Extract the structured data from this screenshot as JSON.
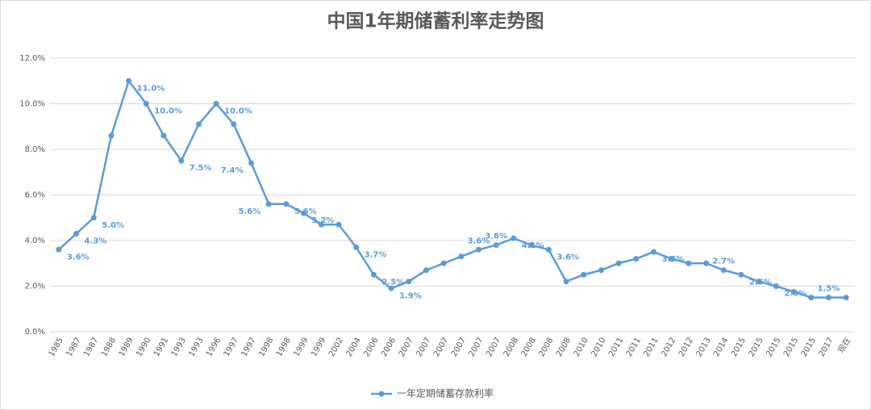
{
  "chart_data": {
    "type": "line",
    "title": "中国1年期储蓄利率走势图",
    "categories": [
      "1985",
      "1987",
      "1987",
      "1988",
      "1989",
      "1990",
      "1991",
      "1993",
      "1993",
      "1996",
      "1997",
      "1997",
      "1998",
      "1998",
      "1999",
      "1999",
      "2002",
      "2004",
      "2006",
      "2006",
      "2007",
      "2007",
      "2007",
      "2007",
      "2007",
      "2007",
      "2008",
      "2008",
      "2008",
      "2008",
      "2010",
      "2010",
      "2011",
      "2011",
      "2011",
      "2012",
      "2012",
      "2013",
      "2014",
      "2015",
      "2015",
      "2015",
      "2015",
      "2015",
      "2017",
      "现在"
    ],
    "series": [
      {
        "name": "一年定期储蓄存款利率",
        "color": "#5b9bd5",
        "values": [
          3.6,
          4.3,
          5.0,
          8.6,
          11.0,
          10.0,
          8.6,
          7.5,
          9.1,
          10.0,
          9.1,
          7.4,
          5.6,
          5.6,
          5.2,
          4.7,
          4.7,
          3.7,
          2.5,
          1.9,
          2.2,
          2.7,
          3.0,
          3.3,
          3.6,
          3.8,
          4.1,
          3.8,
          3.6,
          2.2,
          2.5,
          2.7,
          3.0,
          3.2,
          3.5,
          3.2,
          3.0,
          3.0,
          2.7,
          2.5,
          2.2,
          2.0,
          1.75,
          1.5,
          1.5,
          1.5
        ],
        "value_labels": [
          "3.6%",
          "4.3%",
          "5.0%",
          null,
          "11.0%",
          "10.0%",
          null,
          "7.5%",
          null,
          "10.0%",
          null,
          "7.4%",
          "5.6%",
          "5.6%",
          "5.2%",
          null,
          null,
          "3.7%",
          "2.5%",
          "1.9%",
          null,
          null,
          null,
          null,
          "3.6%",
          "3.8%",
          "4.1%",
          null,
          "3.6%",
          null,
          null,
          null,
          null,
          null,
          "3.5%",
          null,
          null,
          null,
          "2.7%",
          "2.5%",
          null,
          "2.0%",
          null,
          null,
          "1.5%",
          null
        ]
      }
    ],
    "ylim": [
      0,
      12
    ],
    "yticks": [
      {
        "value": 0,
        "label": "0.0%"
      },
      {
        "value": 2,
        "label": "2.0%"
      },
      {
        "value": 4,
        "label": "4.0%"
      },
      {
        "value": 6,
        "label": "6.0%"
      },
      {
        "value": 8,
        "label": "8.0%"
      },
      {
        "value": 10,
        "label": "10.0%"
      },
      {
        "value": 12,
        "label": "12.0%"
      }
    ],
    "grid": true,
    "legend": "bottom"
  }
}
